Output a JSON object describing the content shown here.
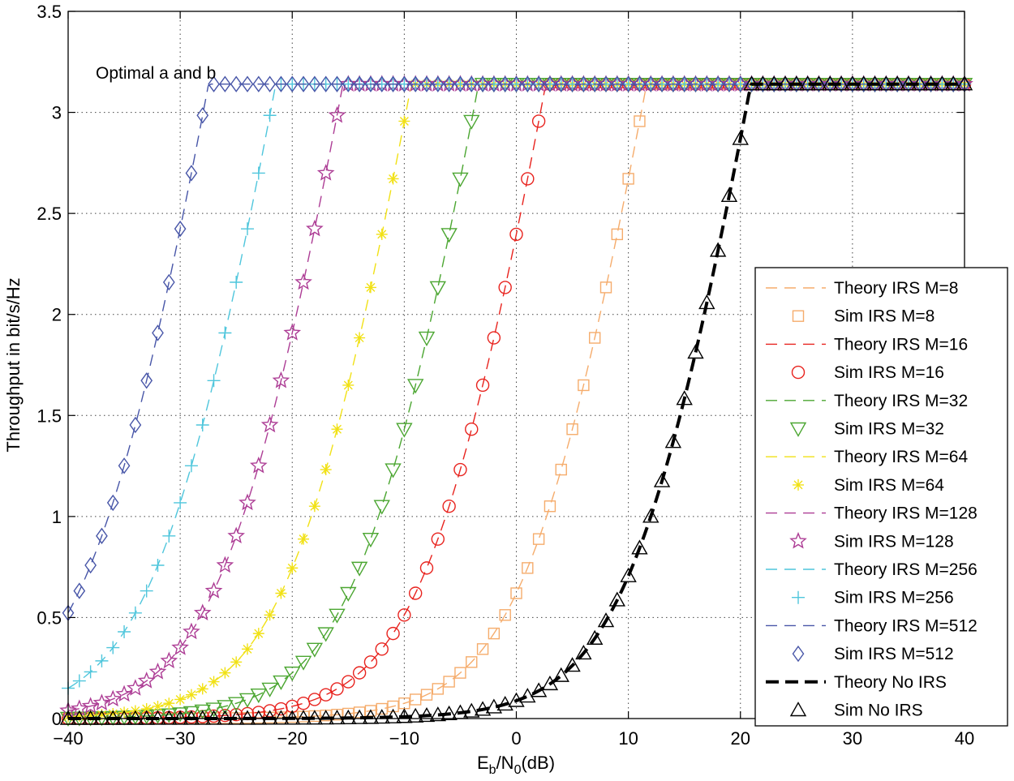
{
  "chart_data": {
    "type": "line",
    "title": "",
    "xlabel_main": "E",
    "xlabel_sub1": "b",
    "xlabel_mid": "/N",
    "xlabel_sub2": "0",
    "xlabel_end": "(dB)",
    "ylabel": "Throughput in bit/s/Hz",
    "annotation": "Optimal a and b",
    "xlim": [
      -40,
      40
    ],
    "ylim": [
      0,
      3.5
    ],
    "xticks": [
      -40,
      -30,
      -20,
      -10,
      0,
      10,
      20,
      30,
      40
    ],
    "yticks": [
      0,
      0.5,
      1,
      1.5,
      2,
      2.5,
      3,
      3.5
    ],
    "x_tick_labels": [
      "−40",
      "−30",
      "−20",
      "−10",
      "0",
      "10",
      "20",
      "30",
      "40"
    ],
    "y_tick_labels": [
      "0",
      "0.5",
      "1",
      "1.5",
      "2",
      "2.5",
      "3",
      "3.5"
    ],
    "grid": true,
    "legend_position": "right",
    "sim_x_range": [
      -40,
      40
    ],
    "sim_x_step": 1,
    "max_throughput": 3.14,
    "series": [
      {
        "name": "Theory IRS M=8",
        "kind": "theory",
        "midpoint_db": 2.7,
        "color": "#f5ac6c",
        "dash": "14 9",
        "width": 1.4
      },
      {
        "name": "Sim IRS M=8",
        "kind": "sim",
        "midpoint_db": 2.7,
        "marker": "square",
        "color": "#f5ac6c"
      },
      {
        "name": "Theory IRS M=16",
        "kind": "theory",
        "midpoint_db": -6.3,
        "color": "#e8231e",
        "dash": "14 9",
        "width": 1.4
      },
      {
        "name": "Sim IRS M=16",
        "kind": "sim",
        "midpoint_db": -6.3,
        "marker": "circle",
        "color": "#e8231e"
      },
      {
        "name": "Theory IRS M=32",
        "kind": "theory",
        "midpoint_db": -12.3,
        "color": "#4ba631",
        "dash": "14 9",
        "width": 1.4
      },
      {
        "name": "Sim IRS M=32",
        "kind": "sim",
        "midpoint_db": -12.3,
        "marker": "triangle-down",
        "color": "#4ba631"
      },
      {
        "name": "Theory IRS M=64",
        "kind": "theory",
        "midpoint_db": -18.3,
        "color": "#f1e115",
        "dash": "14 9",
        "width": 1.4
      },
      {
        "name": "Sim IRS M=64",
        "kind": "sim",
        "midpoint_db": -18.3,
        "marker": "asterisk",
        "color": "#f1e115"
      },
      {
        "name": "Theory IRS M=128",
        "kind": "theory",
        "midpoint_db": -24.4,
        "color": "#ad3d95",
        "dash": "14 9",
        "width": 1.4
      },
      {
        "name": "Sim IRS M=128",
        "kind": "sim",
        "midpoint_db": -24.4,
        "marker": "star",
        "color": "#ad3d95"
      },
      {
        "name": "Theory IRS M=256",
        "kind": "theory",
        "midpoint_db": -30.4,
        "color": "#4fc6dc",
        "dash": "14 9",
        "width": 1.4
      },
      {
        "name": "Sim IRS M=256",
        "kind": "sim",
        "midpoint_db": -30.4,
        "marker": "plus",
        "color": "#4fc6dc"
      },
      {
        "name": "Theory IRS M=512",
        "kind": "theory",
        "midpoint_db": -36.4,
        "color": "#4856a8",
        "dash": "14 9",
        "width": 1.4
      },
      {
        "name": "Sim IRS M=512",
        "kind": "sim",
        "midpoint_db": -36.4,
        "marker": "diamond",
        "color": "#4856a8"
      },
      {
        "name": "Theory No IRS",
        "kind": "theory",
        "midpoint_db": 12.0,
        "color": "#000000",
        "dash": "16 8",
        "width": 4
      },
      {
        "name": "Sim No IRS",
        "kind": "sim",
        "midpoint_db": 12.0,
        "marker": "triangle-up",
        "color": "#000000"
      }
    ]
  }
}
